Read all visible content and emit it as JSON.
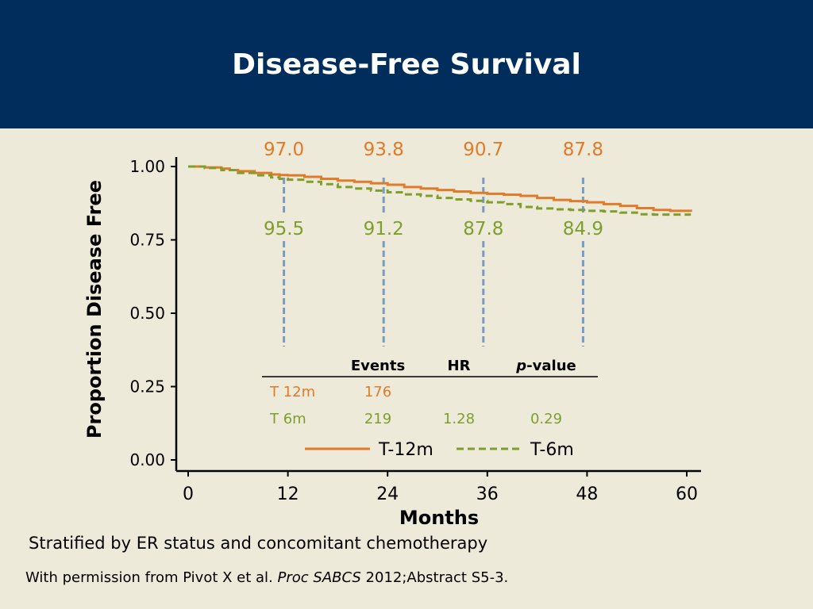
{
  "slide": {
    "title": "Disease-Free Survival",
    "footnote_stratified": "Stratified by ER status and concomitant chemotherapy",
    "citation_prefix": "With permission from Pivot X et al. ",
    "citation_journal": "Proc SABCS",
    "citation_suffix": " 2012;Abstract S5-3."
  },
  "colors": {
    "header_bg": "#002D5C",
    "background": "#EEEAD9",
    "t12": "#E07B2A",
    "t6": "#7F9E2E",
    "marker_dash": "#7B9BC0"
  },
  "chart_data": {
    "type": "line",
    "title": "",
    "xlabel": "Months",
    "ylabel": "Proportion Disease Free",
    "xlim": [
      0,
      61
    ],
    "ylim": [
      0,
      1.0
    ],
    "xticks": [
      0,
      12,
      24,
      36,
      48,
      60
    ],
    "yticks": [
      "0.00",
      "0.25",
      "0.50",
      "0.75",
      "1.00"
    ],
    "grid": false,
    "series": [
      {
        "name": "T-12m",
        "style": "solid",
        "color": "#E07B2A",
        "x": [
          0,
          2,
          4,
          5,
          6,
          8,
          10,
          11,
          12,
          14,
          16,
          18,
          20,
          22,
          24,
          26,
          28,
          30,
          32,
          34,
          36,
          38,
          40,
          42,
          44,
          46,
          48,
          50,
          52,
          54,
          56,
          58,
          60.5
        ],
        "y": [
          1.0,
          0.997,
          0.993,
          0.988,
          0.984,
          0.978,
          0.973,
          0.971,
          0.97,
          0.965,
          0.958,
          0.952,
          0.948,
          0.943,
          0.938,
          0.93,
          0.925,
          0.92,
          0.915,
          0.91,
          0.907,
          0.904,
          0.9,
          0.893,
          0.886,
          0.882,
          0.878,
          0.872,
          0.866,
          0.858,
          0.852,
          0.849,
          0.846
        ]
      },
      {
        "name": "T-6m",
        "style": "dashed",
        "color": "#7F9E2E",
        "x": [
          0,
          2,
          4,
          6,
          8,
          10,
          11,
          12,
          14,
          16,
          18,
          20,
          22,
          24,
          26,
          28,
          30,
          32,
          34,
          36,
          38,
          40,
          42,
          44,
          46,
          48,
          50,
          52,
          54,
          56,
          58,
          60.5
        ],
        "y": [
          1.0,
          0.995,
          0.988,
          0.978,
          0.97,
          0.963,
          0.958,
          0.955,
          0.948,
          0.94,
          0.93,
          0.925,
          0.918,
          0.912,
          0.905,
          0.9,
          0.893,
          0.888,
          0.883,
          0.878,
          0.872,
          0.862,
          0.857,
          0.854,
          0.852,
          0.849,
          0.847,
          0.843,
          0.837,
          0.836,
          0.836,
          0.836
        ]
      }
    ],
    "markers": [
      {
        "x": 12,
        "t12_label": "97.0",
        "t6_label": "95.5"
      },
      {
        "x": 24,
        "t12_label": "93.8",
        "t6_label": "91.2"
      },
      {
        "x": 36,
        "t12_label": "90.7",
        "t6_label": "87.8"
      },
      {
        "x": 48,
        "t12_label": "87.8",
        "t6_label": "84.9"
      }
    ],
    "legend": {
      "position": "bottom-center",
      "entries": [
        "T-12m",
        "T-6m"
      ]
    },
    "stats_table": {
      "header_events": "Events",
      "header_hr": "HR",
      "header_p_italic": "p",
      "header_p_rest": "-value",
      "rows": [
        {
          "label": "T 12m",
          "events": "176",
          "hr": "",
          "p": ""
        },
        {
          "label": "T 6m",
          "events": "219",
          "hr": "1.28",
          "p": "0.29"
        }
      ]
    }
  }
}
